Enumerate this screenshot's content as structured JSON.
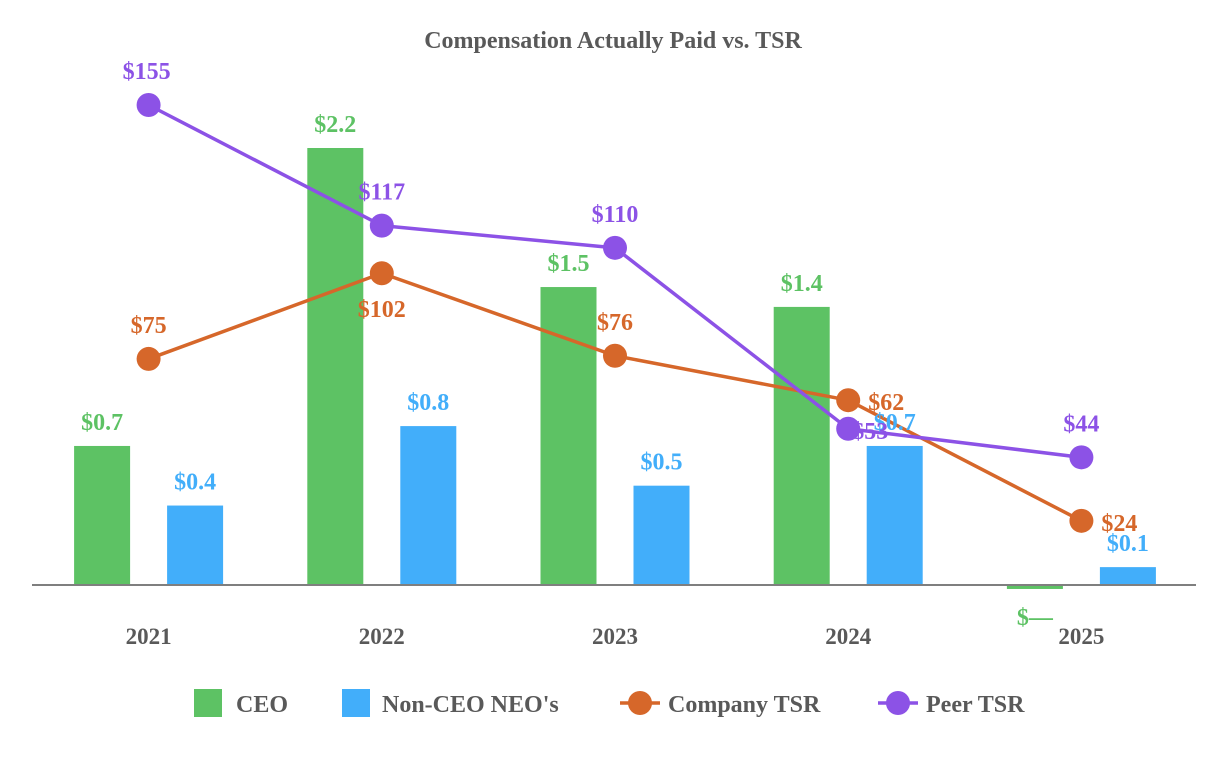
{
  "chart_data": {
    "type": "bar",
    "title": "Compensation Actually Paid vs. TSR",
    "xlabel": "",
    "ylabel": "",
    "categories": [
      "2021",
      "2022",
      "2023",
      "2024",
      "2025"
    ],
    "bar_axis": {
      "ylim": [
        -0.05,
        2.2
      ]
    },
    "line_axis": {
      "ylim": [
        0,
        155
      ]
    },
    "series": [
      {
        "name": "CEO",
        "kind": "bar",
        "color": "#5dc264",
        "values": [
          0.7,
          2.2,
          1.5,
          1.4,
          -0.02
        ],
        "labels": [
          "$0.7",
          "$2.2",
          "$1.5",
          "$1.4",
          "$—"
        ]
      },
      {
        "name": "Non-CEO NEO's",
        "kind": "bar",
        "color": "#42aefa",
        "values": [
          0.4,
          0.8,
          0.5,
          0.7,
          0.09
        ],
        "labels": [
          "$0.4",
          "$0.8",
          "$0.5",
          "$0.7",
          "$0.1"
        ]
      },
      {
        "name": "Company TSR",
        "kind": "line",
        "color": "#d6672a",
        "values": [
          75,
          102,
          76,
          62,
          24
        ],
        "labels": [
          "$75",
          "$102",
          "$76",
          "$62",
          "$24"
        ]
      },
      {
        "name": "Peer TSR",
        "kind": "line",
        "color": "#8c52e6",
        "values": [
          155,
          117,
          110,
          53,
          44
        ],
        "labels": [
          "$155",
          "$117",
          "$110",
          "$53",
          "$44"
        ]
      }
    ],
    "legend": "bottom",
    "grid": false
  }
}
